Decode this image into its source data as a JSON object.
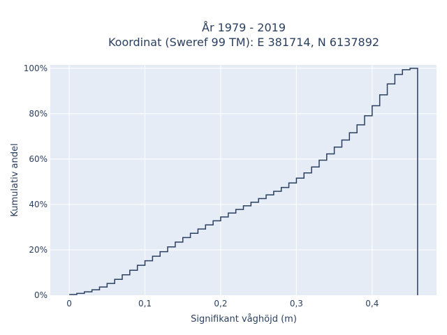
{
  "chart_data": {
    "type": "line",
    "line_shape": "step",
    "title": "År 1979 - 2019",
    "subtitle": "Koordinat (Sweref 99 TM): E 381714, N 6137892",
    "xlabel": "Signifikant våghöjd (m)",
    "ylabel": "Kumulativ andel",
    "x_ticks": [
      "0",
      "0,1",
      "0,2",
      "0,3",
      "0,4"
    ],
    "x_tick_values": [
      0,
      0.1,
      0.2,
      0.3,
      0.4
    ],
    "y_ticks": [
      "0%",
      "20%",
      "40%",
      "60%",
      "80%",
      "100%"
    ],
    "y_tick_values": [
      0,
      20,
      40,
      60,
      80,
      100
    ],
    "xlim": [
      -0.025,
      0.485
    ],
    "ylim": [
      0,
      101.5
    ],
    "grid": true,
    "line_color": "#2a3f5f",
    "series": [
      {
        "x": [
          0,
          0.01,
          0.02,
          0.03,
          0.04,
          0.05,
          0.06,
          0.07,
          0.08,
          0.09,
          0.1,
          0.11,
          0.12,
          0.13,
          0.14,
          0.15,
          0.16,
          0.17,
          0.18,
          0.19,
          0.2,
          0.21,
          0.22,
          0.23,
          0.24,
          0.25,
          0.26,
          0.27,
          0.28,
          0.29,
          0.3,
          0.31,
          0.32,
          0.33,
          0.34,
          0.35,
          0.36,
          0.37,
          0.38,
          0.39,
          0.4,
          0.41,
          0.42,
          0.43,
          0.44,
          0.45,
          0.46
        ],
        "y": [
          0.3,
          0.8,
          1.5,
          2.4,
          3.6,
          5.2,
          7.0,
          9.0,
          11.0,
          13.2,
          15.2,
          17.2,
          19.2,
          21.3,
          23.4,
          25.4,
          27.3,
          29.2,
          31.0,
          32.8,
          34.5,
          36.2,
          37.8,
          39.4,
          41.0,
          42.6,
          44.2,
          45.8,
          47.5,
          49.5,
          51.6,
          53.9,
          56.5,
          59.5,
          62.3,
          65.3,
          68.4,
          71.6,
          75.1,
          79.1,
          83.5,
          88.3,
          93.1,
          97.3,
          99.4,
          100,
          0
        ]
      }
    ]
  }
}
